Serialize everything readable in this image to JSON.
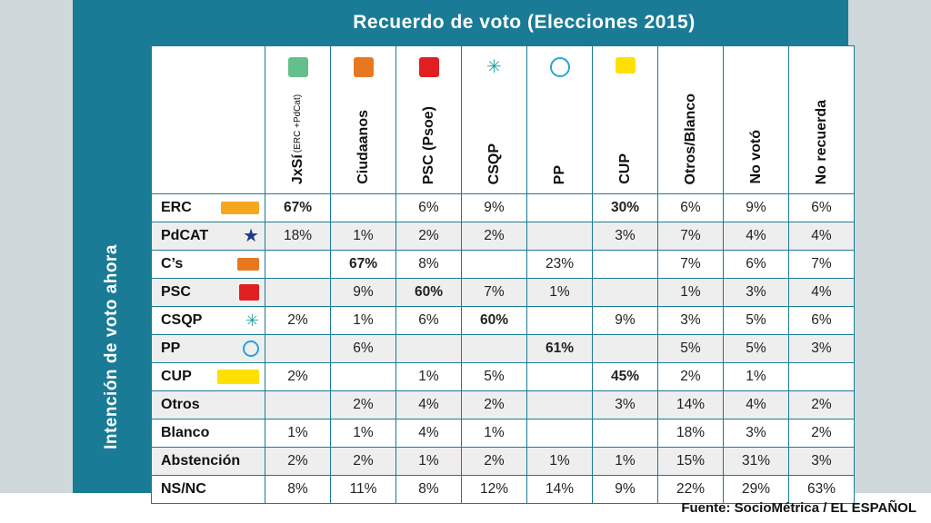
{
  "chart_data": {
    "type": "table",
    "title": "Recuerdo de voto (Elecciones 2015)",
    "row_axis_label": "Intención de voto ahora",
    "columns": [
      {
        "name": "JxSí",
        "sub": "(ERC +PdCat)",
        "logo": "jxsi-logo"
      },
      {
        "name": "Ciudaanos",
        "sub": "",
        "logo": "cs-logo"
      },
      {
        "name": "PSC (Psoe)",
        "sub": "",
        "logo": "psc-logo"
      },
      {
        "name": "CSQP",
        "sub": "",
        "logo": "csqp-logo"
      },
      {
        "name": "PP",
        "sub": "",
        "logo": "pp-logo"
      },
      {
        "name": "CUP",
        "sub": "",
        "logo": "cup-logo"
      },
      {
        "name": "Otros/Blanco",
        "sub": "",
        "logo": "none"
      },
      {
        "name": "No votó",
        "sub": "",
        "logo": "none"
      },
      {
        "name": "No recuerda",
        "sub": "",
        "logo": "none"
      }
    ],
    "rows": [
      {
        "name": "ERC",
        "logo": "erc-logo",
        "values": [
          "67%",
          "",
          "6%",
          "9%",
          "",
          "30%",
          "6%",
          "9%",
          "6%"
        ],
        "highlight": [
          0,
          5
        ]
      },
      {
        "name": "PdCAT",
        "logo": "pdcat-logo",
        "values": [
          "18%",
          "1%",
          "2%",
          "2%",
          "",
          "3%",
          "7%",
          "4%",
          "4%"
        ],
        "highlight": []
      },
      {
        "name": "C’s",
        "logo": "cs-logo",
        "values": [
          "",
          "67%",
          "8%",
          "",
          "23%",
          "",
          "7%",
          "6%",
          "7%"
        ],
        "highlight": [
          1
        ]
      },
      {
        "name": "PSC",
        "logo": "psc-logo",
        "values": [
          "",
          "9%",
          "60%",
          "7%",
          "1%",
          "",
          "1%",
          "3%",
          "4%"
        ],
        "highlight": [
          2
        ]
      },
      {
        "name": "CSQP",
        "logo": "csqp-logo",
        "values": [
          "2%",
          "1%",
          "6%",
          "60%",
          "",
          "9%",
          "3%",
          "5%",
          "6%"
        ],
        "highlight": [
          3
        ]
      },
      {
        "name": "PP",
        "logo": "pp-logo",
        "values": [
          "",
          "6%",
          "",
          "",
          "61%",
          "",
          "5%",
          "5%",
          "3%"
        ],
        "highlight": [
          4
        ]
      },
      {
        "name": "CUP",
        "logo": "cup-logo",
        "values": [
          "2%",
          "",
          "1%",
          "5%",
          "",
          "45%",
          "2%",
          "1%",
          ""
        ],
        "highlight": [
          5
        ]
      },
      {
        "name": "Otros",
        "logo": "none",
        "values": [
          "",
          "2%",
          "4%",
          "2%",
          "",
          "3%",
          "14%",
          "4%",
          "2%"
        ],
        "highlight": []
      },
      {
        "name": "Blanco",
        "logo": "none",
        "values": [
          "1%",
          "1%",
          "4%",
          "1%",
          "",
          "",
          "18%",
          "3%",
          "2%"
        ],
        "highlight": []
      },
      {
        "name": "Abstención",
        "logo": "none",
        "values": [
          "2%",
          "2%",
          "1%",
          "2%",
          "1%",
          "1%",
          "15%",
          "31%",
          "3%"
        ],
        "highlight": []
      },
      {
        "name": "NS/NC",
        "logo": "none",
        "values": [
          "8%",
          "11%",
          "8%",
          "12%",
          "14%",
          "9%",
          "22%",
          "29%",
          "63%"
        ],
        "highlight": []
      }
    ]
  },
  "source": "Fuente: SocioMétrica / EL ESPAÑOL",
  "colors": {
    "header_bg": "#1a7b96",
    "side_bg": "#cfd8da",
    "row_alt": "#eeeeee"
  }
}
